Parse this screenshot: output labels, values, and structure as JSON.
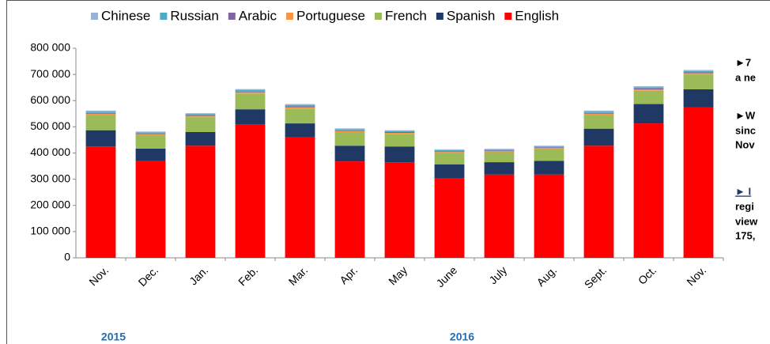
{
  "chart_data": {
    "type": "bar",
    "stacked": true,
    "categories": [
      "Nov.",
      "Dec.",
      "Jan.",
      "Feb.",
      "Mar.",
      "Apr.",
      "May",
      "June",
      "July",
      "Aug.",
      "Sept.",
      "Oct.",
      "Nov."
    ],
    "year_labels": [
      {
        "label": "2015",
        "category": 0
      },
      {
        "label": "2016",
        "category": 7
      }
    ],
    "series": [
      {
        "name": "English",
        "color": "#ff0000",
        "values": [
          425000,
          370000,
          428000,
          510000,
          460000,
          368000,
          365000,
          303000,
          318000,
          318000,
          428000,
          513000,
          575000
        ]
      },
      {
        "name": "Spanish",
        "color": "#1f3864",
        "values": [
          62000,
          47000,
          52000,
          57000,
          53000,
          60000,
          60000,
          54000,
          47000,
          52000,
          65000,
          74000,
          68000
        ]
      },
      {
        "name": "French",
        "color": "#9bbb59",
        "values": [
          58000,
          51000,
          57000,
          60000,
          57000,
          52000,
          48000,
          43000,
          38000,
          45000,
          52000,
          51000,
          57000
        ]
      },
      {
        "name": "Portuguese",
        "color": "#f79646",
        "values": [
          5000,
          4000,
          5000,
          5000,
          5000,
          4000,
          4000,
          4000,
          4000,
          4000,
          5000,
          5000,
          5000
        ]
      },
      {
        "name": "Arabic",
        "color": "#8064a2",
        "values": [
          3000,
          3000,
          3000,
          3000,
          3000,
          3000,
          3000,
          3000,
          3000,
          3000,
          3000,
          3000,
          3000
        ]
      },
      {
        "name": "Russian",
        "color": "#4bacc6",
        "values": [
          5000,
          4000,
          4000,
          5000,
          5000,
          4000,
          4000,
          4000,
          3000,
          3000,
          5000,
          5000,
          5000
        ]
      },
      {
        "name": "Chinese",
        "color": "#95b3d7",
        "values": [
          4000,
          3000,
          3000,
          4000,
          4000,
          3000,
          3000,
          3000,
          3000,
          3000,
          4000,
          4000,
          4000
        ]
      }
    ],
    "legend_order": [
      6,
      5,
      4,
      3,
      2,
      1,
      0
    ],
    "ylim": [
      0,
      800000
    ],
    "yticks": [
      0,
      {
        "value": 100000,
        "label": "100 000"
      },
      {
        "value": 200000,
        "label": "200 000"
      },
      {
        "value": 300000,
        "label": "300 000"
      },
      {
        "value": 400000,
        "label": "400 000"
      },
      {
        "value": 500000,
        "label": "500 000"
      },
      {
        "value": 600000,
        "label": "600 000"
      },
      {
        "value": 700000,
        "label": "700 000"
      },
      {
        "value": 800000,
        "label": "800 000"
      }
    ],
    "grid": false,
    "notes": [
      "►7",
      "a ne",
      "►W",
      "sinc",
      "Nov",
      "► I",
      "regi",
      "view",
      "175,"
    ]
  }
}
